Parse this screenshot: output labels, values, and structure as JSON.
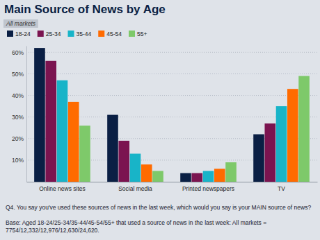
{
  "chart_data": {
    "type": "bar",
    "title": "Main Source of News by Age",
    "subtitle": "All markets",
    "categories": [
      "Online news sites",
      "Social media",
      "Printed newspapers",
      "TV"
    ],
    "series": [
      {
        "name": "18-24",
        "color": "#0a1f44",
        "values": [
          62,
          31,
          4,
          22
        ]
      },
      {
        "name": "25-34",
        "color": "#7b1450",
        "values": [
          56,
          19,
          4,
          27
        ]
      },
      {
        "name": "35-44",
        "color": "#18b4c8",
        "values": [
          47,
          13,
          5,
          35
        ]
      },
      {
        "name": "45-54",
        "color": "#ff6b00",
        "values": [
          37,
          8,
          6,
          43
        ]
      },
      {
        "name": "55+",
        "color": "#7ec96a",
        "values": [
          26,
          5,
          9,
          49
        ]
      }
    ],
    "ylim": [
      0,
      63
    ],
    "yticks": [
      {
        "value": 10,
        "label": "10%"
      },
      {
        "value": 20,
        "label": "20%"
      },
      {
        "value": 30,
        "label": "30%"
      },
      {
        "value": 40,
        "label": "40%"
      },
      {
        "value": 50,
        "label": "50%"
      },
      {
        "value": 60,
        "label": "60%"
      }
    ],
    "grid": true,
    "legend": "top-left",
    "annotations": [
      "Q4. You say you've used these sources of news in the last week, which would you say is your MAIN source of news?",
      "Base: Aged 18-24/25-34/35-44/45-54/55+ that used a source of news in the last week: All markets = 7754/12,332/12,976/12,630/24,620."
    ]
  }
}
